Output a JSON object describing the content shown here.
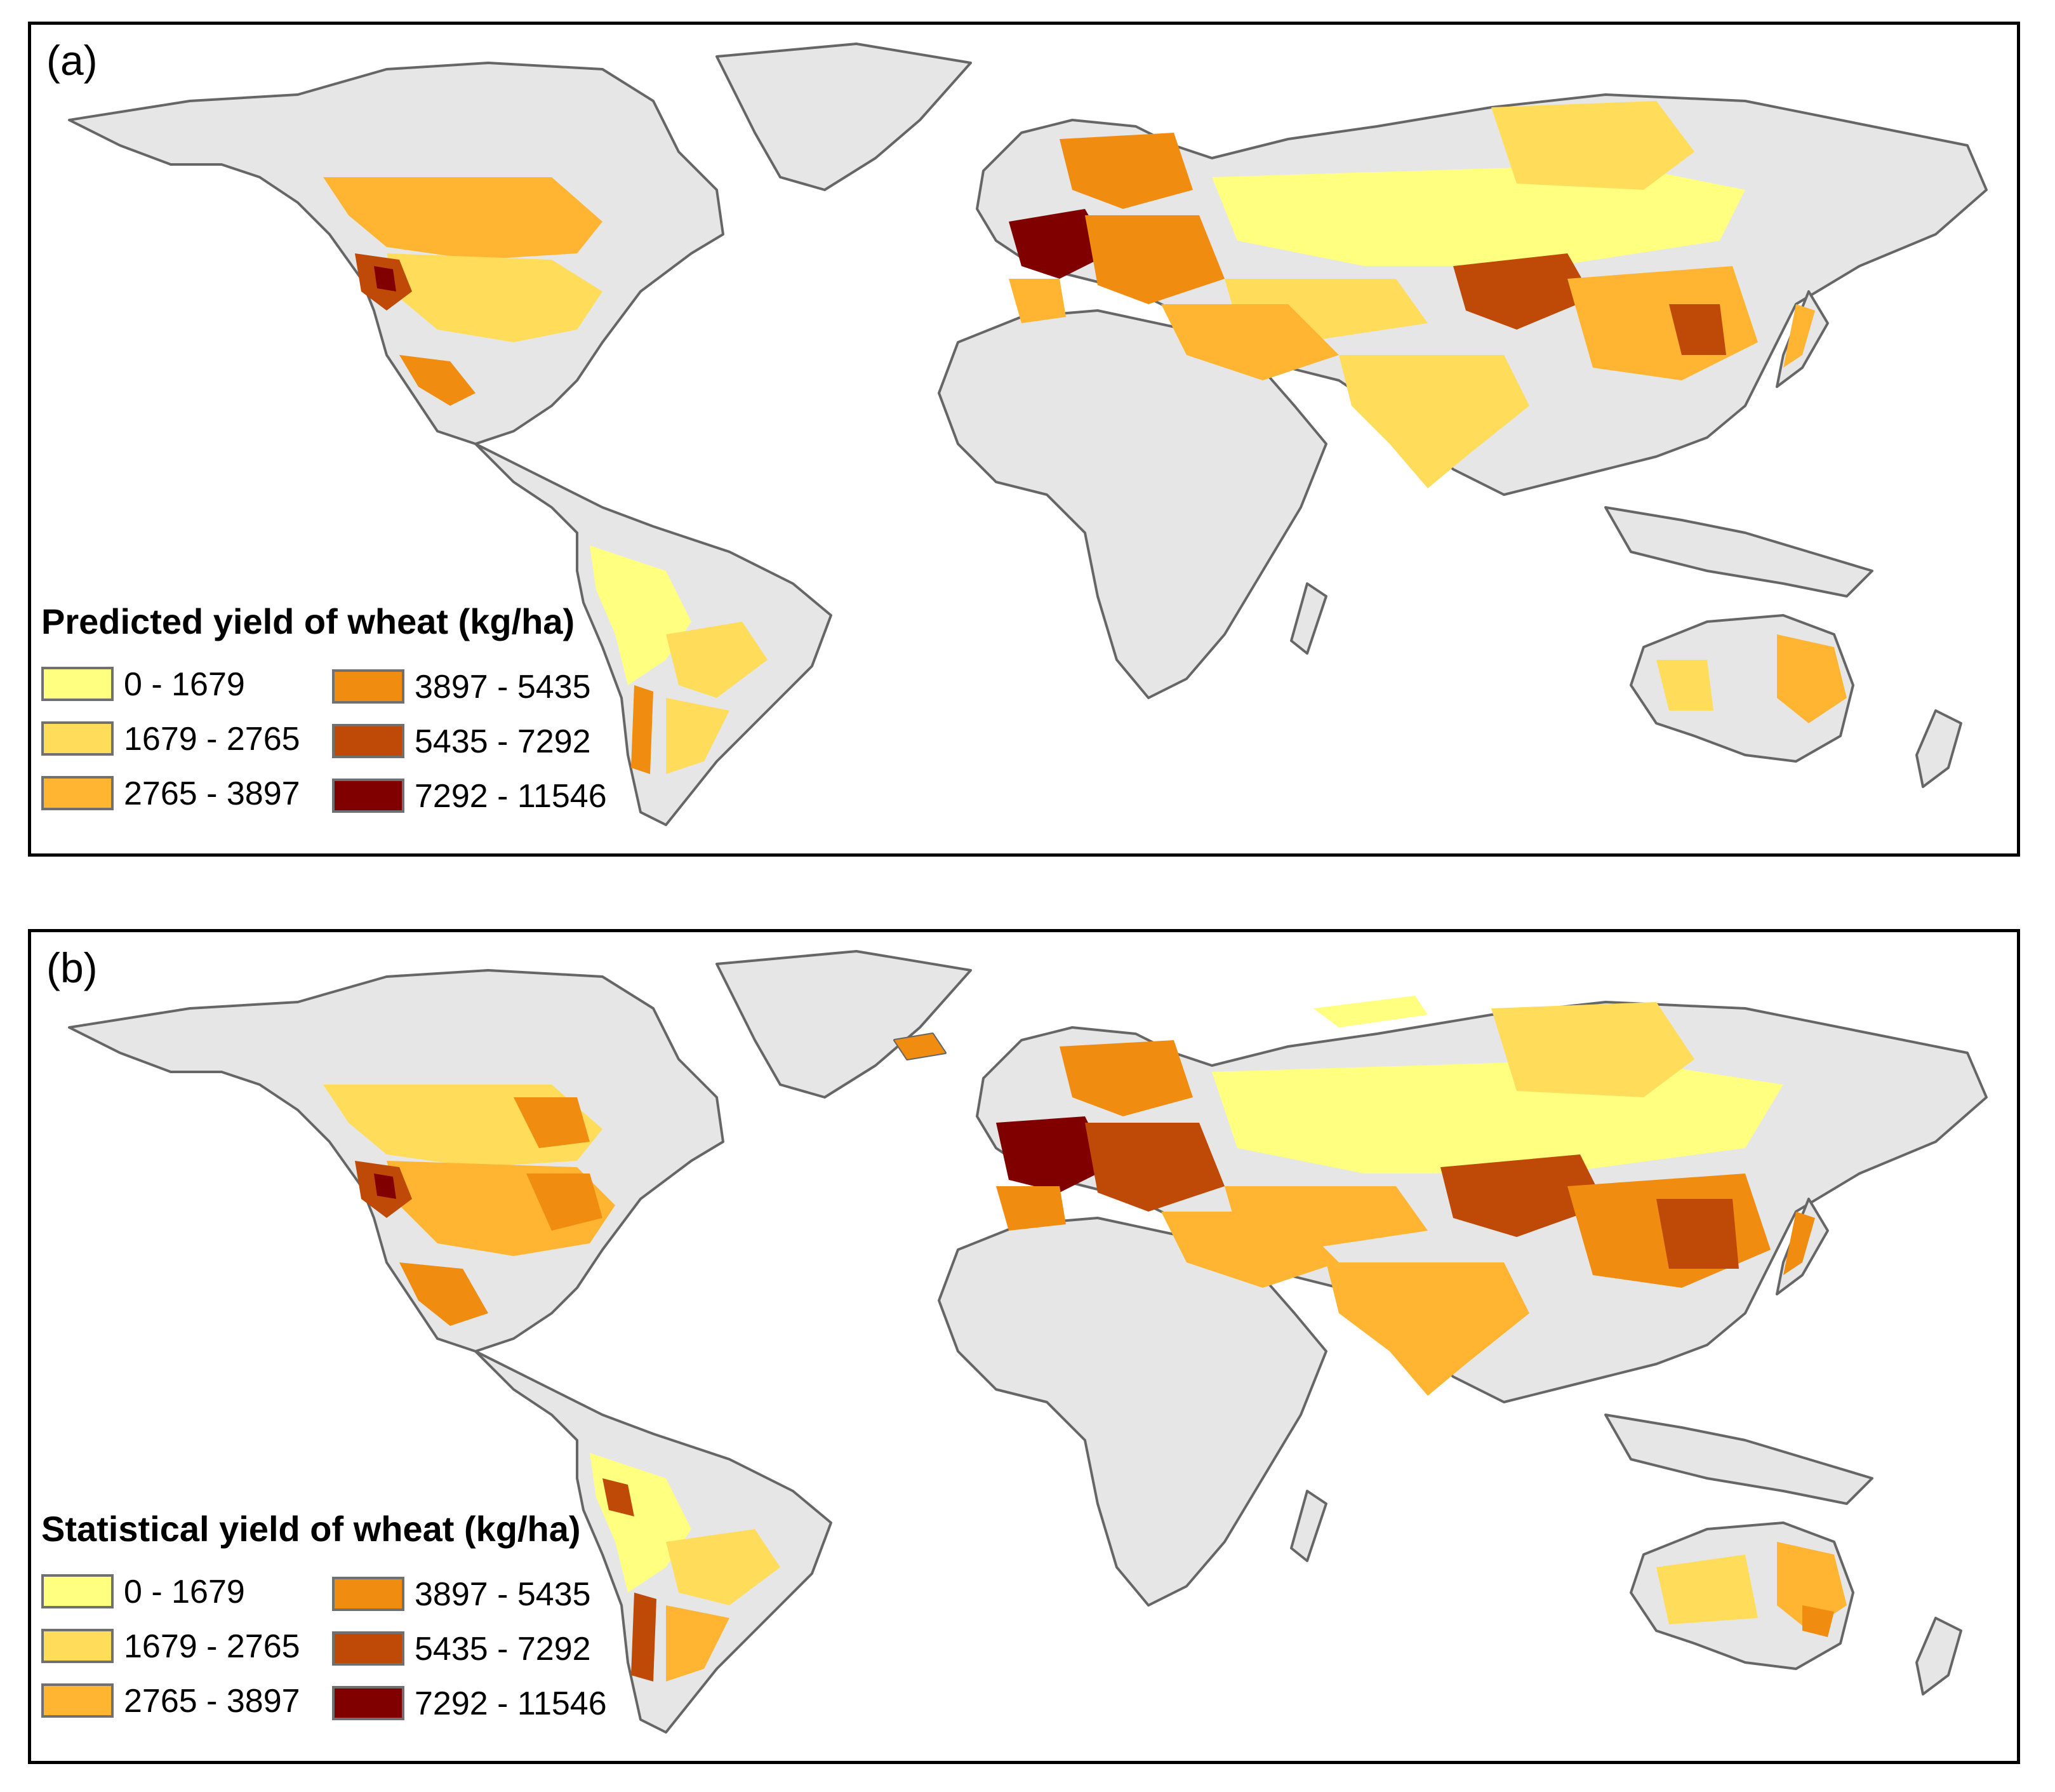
{
  "colors": {
    "land_no_data": "#e6e6e6",
    "outline": "#666666",
    "classes": [
      "#ffff80",
      "#ffdc5a",
      "#ffb432",
      "#f08c10",
      "#bf4a08",
      "#800000"
    ]
  },
  "panels": [
    {
      "id": "a",
      "label": "(a)",
      "legend": {
        "title": "Predicted yield of wheat (kg/ha)",
        "classes": [
          "0 - 1679",
          "1679 - 2765",
          "2765 - 3897",
          "3897 - 5435",
          "5435 - 7292",
          "7292 - 11546"
        ]
      }
    },
    {
      "id": "b",
      "label": "(b)",
      "legend": {
        "title": "Statistical yield of wheat (kg/ha)",
        "classes": [
          "0 - 1679",
          "1679 - 2765",
          "2765 - 3897",
          "3897 - 5435",
          "5435 - 7292",
          "7292 - 11546"
        ]
      }
    }
  ]
}
